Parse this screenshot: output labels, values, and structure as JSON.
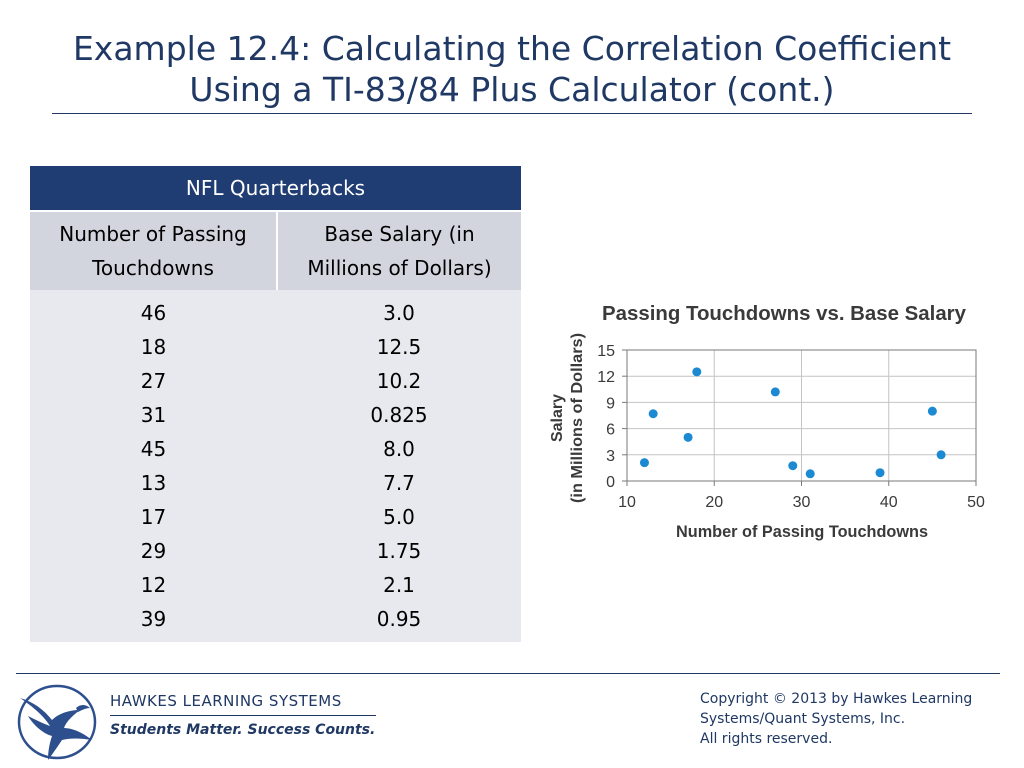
{
  "slide": {
    "title_line1": "Example 12.4: Calculating the Correlation Coefficient",
    "title_line2": "Using a TI-83/84 Plus Calculator (cont.)"
  },
  "table": {
    "caption": "NFL Quarterbacks",
    "col1_header_line1": "Number of Passing",
    "col1_header_line2": "Touchdowns",
    "col2_header_line1": "Base Salary (in",
    "col2_header_line2": "Millions of Dollars)",
    "rows": [
      {
        "touchdowns": "46",
        "salary": "3.0"
      },
      {
        "touchdowns": "18",
        "salary": "12.5"
      },
      {
        "touchdowns": "27",
        "salary": "10.2"
      },
      {
        "touchdowns": "31",
        "salary": "0.825"
      },
      {
        "touchdowns": "45",
        "salary": "8.0"
      },
      {
        "touchdowns": "13",
        "salary": "7.7"
      },
      {
        "touchdowns": "17",
        "salary": "5.0"
      },
      {
        "touchdowns": "29",
        "salary": "1.75"
      },
      {
        "touchdowns": "12",
        "salary": "2.1"
      },
      {
        "touchdowns": "39",
        "salary": "0.95"
      }
    ]
  },
  "chart_data": {
    "type": "scatter",
    "title": "Passing Touchdowns vs. Base Salary",
    "xlabel": "Number of Passing Touchdowns",
    "ylabel_line1": "Salary",
    "ylabel_line2": "(in Millions of Dollars)",
    "xlim": [
      10,
      50
    ],
    "ylim": [
      0,
      15
    ],
    "x_ticks": [
      "10",
      "20",
      "30",
      "40",
      "50"
    ],
    "y_ticks": [
      "0",
      "3",
      "6",
      "9",
      "12",
      "15"
    ],
    "grid": true,
    "point_color": "#1b8ad3",
    "points": [
      {
        "x": 46,
        "y": 3.0
      },
      {
        "x": 18,
        "y": 12.5
      },
      {
        "x": 27,
        "y": 10.2
      },
      {
        "x": 31,
        "y": 0.825
      },
      {
        "x": 45,
        "y": 8.0
      },
      {
        "x": 13,
        "y": 7.7
      },
      {
        "x": 17,
        "y": 5.0
      },
      {
        "x": 29,
        "y": 1.75
      },
      {
        "x": 12,
        "y": 2.1
      },
      {
        "x": 39,
        "y": 0.95
      }
    ]
  },
  "footer": {
    "company": "HAWKES  LEARNING  SYSTEMS",
    "slogan": "Students Matter. Success Counts.",
    "copyright_line1": "Copyright © 2013 by Hawkes Learning",
    "copyright_line2": "Systems/Quant Systems, Inc.",
    "copyright_line3": "All rights reserved.",
    "logo_icon": "eagle-icon"
  }
}
